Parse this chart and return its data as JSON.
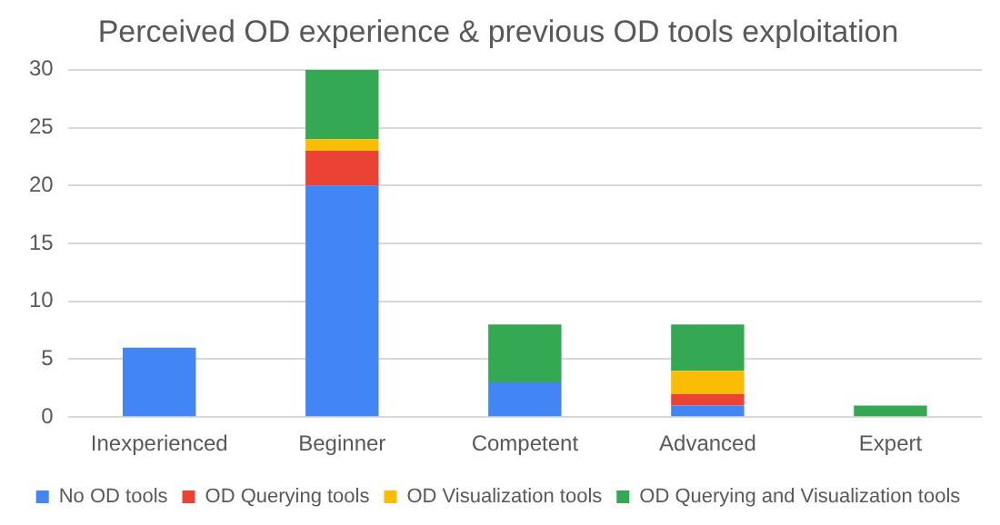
{
  "chart_data": {
    "type": "bar",
    "title": "Perceived OD experience & previous OD tools exploitation",
    "categories": [
      "Inexperienced",
      "Beginner",
      "Competent",
      "Advanced",
      "Expert"
    ],
    "stacked": true,
    "series": [
      {
        "name": "No OD tools",
        "color": "#4285f4",
        "values": [
          6,
          20,
          3,
          1,
          0
        ]
      },
      {
        "name": "OD Querying tools",
        "color": "#ea4335",
        "values": [
          0,
          3,
          0,
          1,
          0
        ]
      },
      {
        "name": "OD Visualization tools",
        "color": "#fbbc04",
        "values": [
          0,
          1,
          0,
          2,
          0
        ]
      },
      {
        "name": "OD Querying and Visualization tools",
        "color": "#34a853",
        "values": [
          0,
          6,
          5,
          4,
          1
        ]
      }
    ],
    "ylim": [
      0,
      30
    ],
    "yticks": [
      0,
      5,
      10,
      15,
      20,
      25,
      30
    ],
    "grid": "y",
    "legend": "bottom"
  }
}
